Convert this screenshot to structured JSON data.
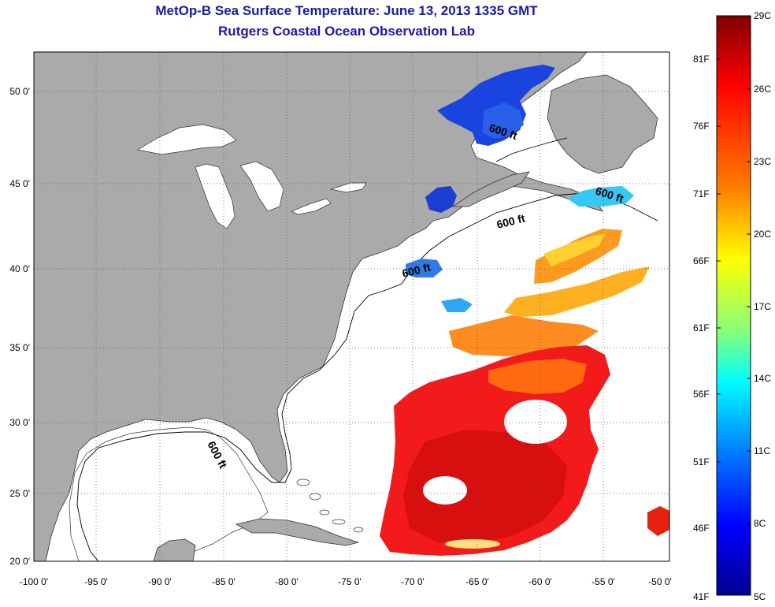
{
  "title": "MetOp-B Sea Surface Temperature:  June 13, 2013 1335 GMT",
  "subtitle": "Rutgers Coastal Ocean Observation Lab",
  "map": {
    "lon_range": [
      -100,
      -50
    ],
    "lat_range": [
      20,
      52.5
    ],
    "x_ticks": [
      "-100 0'",
      "-95 0'",
      "-90 0'",
      "-85 0'",
      "-80 0'",
      "-75 0'",
      "-70 0'",
      "-65 0'",
      "-60 0'",
      "-55 0'",
      "-50 0'"
    ],
    "y_ticks": [
      "50 0'",
      "45 0'",
      "40 0'",
      "35 0'",
      "30 0'",
      "25 0'",
      "20 0'"
    ],
    "grid": "dotted",
    "land_color": "#aaaaaa",
    "ocean_color": "#ffffff",
    "contour_labels": [
      "600 ft",
      "600 ft",
      "600 ft",
      "600 ft",
      "600 ft"
    ]
  },
  "colorbar": {
    "celsius_labels": [
      "29C",
      "26C",
      "23C",
      "20C",
      "17C",
      "14C",
      "11C",
      "8C",
      "5C"
    ],
    "fahrenheit_labels": [
      "81F",
      "76F",
      "71F",
      "66F",
      "61F",
      "56F",
      "51F",
      "46F",
      "41F"
    ],
    "colormap": [
      "#7f0000",
      "#ff0000",
      "#ff8000",
      "#ffff00",
      "#80ff80",
      "#00ffff",
      "#0080ff",
      "#0000ff",
      "#00008f"
    ]
  }
}
